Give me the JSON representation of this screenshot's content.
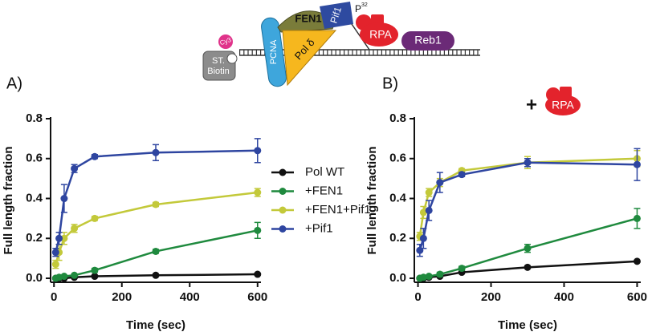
{
  "chart_data": [
    {
      "type": "line",
      "label": "A)",
      "x_label": "Time (sec)",
      "y_label": "Full length fraction",
      "x": [
        5,
        15,
        30,
        60,
        120,
        300,
        600
      ],
      "xlim": [
        -10,
        610
      ],
      "ylim": [
        -0.02,
        0.8
      ],
      "xticks": [
        0,
        200,
        400,
        600
      ],
      "yticks": [
        {
          "value": 0,
          "label": "0.0"
        },
        0.2,
        0.4,
        0.6,
        0.8
      ],
      "legend": true,
      "series": [
        {
          "name": "Pol WT",
          "color": "#111111",
          "values": [
            0,
            0,
            0,
            0.005,
            0.01,
            0.015,
            0.02
          ],
          "errors": [
            0,
            0,
            0,
            0,
            0,
            0,
            0.005
          ]
        },
        {
          "name": "+FEN1",
          "color": "#1f8a3e",
          "values": [
            0,
            0.005,
            0.01,
            0.015,
            0.04,
            0.135,
            0.24
          ],
          "errors": [
            0,
            0,
            0,
            0,
            0.01,
            0.01,
            0.04
          ]
        },
        {
          "name": "+FEN1+Pif1",
          "color": "#c3c93a",
          "values": [
            0.07,
            0.13,
            0.2,
            0.25,
            0.3,
            0.37,
            0.43
          ],
          "errors": [
            0.02,
            0.04,
            0.03,
            0.02,
            0.01,
            0.01,
            0.02
          ]
        },
        {
          "name": "+Pif1",
          "color": "#2e45a0",
          "values": [
            0.13,
            0.2,
            0.4,
            0.55,
            0.61,
            0.63,
            0.64
          ],
          "errors": [
            0.02,
            0.03,
            0.07,
            0.02,
            0.01,
            0.04,
            0.06
          ]
        }
      ]
    },
    {
      "type": "line",
      "label": "B)",
      "x_label": "Time (sec)",
      "y_label": "Full length fraction",
      "annotations": [
        "+",
        "RPA"
      ],
      "x": [
        5,
        15,
        30,
        60,
        120,
        300,
        600
      ],
      "xlim": [
        -10,
        610
      ],
      "ylim": [
        -0.02,
        0.8
      ],
      "xticks": [
        0,
        200,
        400,
        600
      ],
      "yticks": [
        {
          "value": 0,
          "label": "0.0"
        },
        0.2,
        0.4,
        0.6,
        0.8
      ],
      "series": [
        {
          "color": "#111111",
          "values": [
            0,
            0,
            0.005,
            0.01,
            0.03,
            0.055,
            0.085
          ],
          "errors": [
            0,
            0,
            0,
            0,
            0,
            0.005,
            0.005
          ]
        },
        {
          "color": "#1f8a3e",
          "values": [
            0,
            0.005,
            0.01,
            0.02,
            0.05,
            0.15,
            0.3
          ],
          "errors": [
            0,
            0,
            0,
            0.01,
            0.01,
            0.02,
            0.05
          ]
        },
        {
          "color": "#c3c93a",
          "values": [
            0.21,
            0.33,
            0.43,
            0.48,
            0.54,
            0.58,
            0.6
          ],
          "errors": [
            0.02,
            0.03,
            0.02,
            0.02,
            0.01,
            0.03,
            0.04
          ]
        },
        {
          "color": "#2e45a0",
          "values": [
            0.14,
            0.2,
            0.34,
            0.48,
            0.52,
            0.58,
            0.57
          ],
          "errors": [
            0.03,
            0.05,
            0.05,
            0.05,
            0.01,
            0.02,
            0.08
          ]
        }
      ]
    }
  ],
  "diagram": {
    "nodes": [
      {
        "label": "Cy3"
      },
      {
        "lines": [
          "ST.",
          "Biotin"
        ]
      },
      {
        "label": "PCNA"
      },
      {
        "label": "FEN1"
      },
      {
        "label": "Pol δ"
      },
      {
        "label": "Pif1"
      },
      {
        "label": "P",
        "superscript": "32"
      },
      {
        "label": "RPA"
      },
      {
        "label": "Reb1"
      }
    ]
  }
}
